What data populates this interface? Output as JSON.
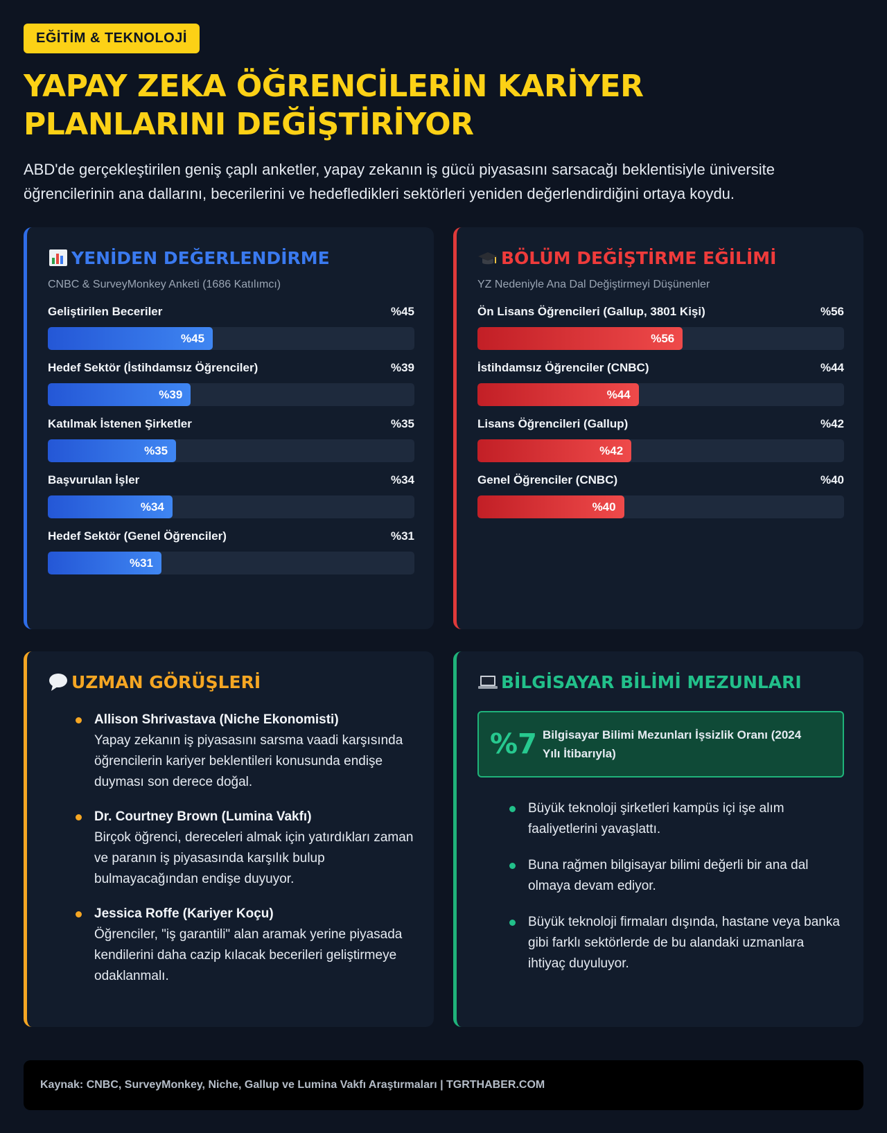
{
  "header": {
    "tag": "EĞİTİM & TEKNOLOJİ",
    "title": "YAPAY ZEKA ÖĞRENCİLERİN KARİYER PLANLARINI DEĞİŞTİRİYOR",
    "lead": "ABD'de gerçekleştirilen geniş çaplı anketler, yapay zekanın iş gücü piyasasını sarsacağı beklentisiyle üniversite öğrencilerinin ana dallarını, becerilerini ve hedefledikleri sektörleri yeniden değerlendirdiğini ortaya koydu."
  },
  "colors": {
    "accent": "#fcd116",
    "blue": "#2f6de8",
    "red": "#e03a3a",
    "orange": "#f5a623",
    "green": "#1fb37a"
  },
  "chart_data": [
    {
      "type": "bar",
      "title": "YENİDEN DEĞERLENDİRME",
      "icon": "bar-chart-icon",
      "subtitle": "CNBC & SurveyMonkey Anketi (1686 Katılımcı)",
      "categories": [
        "Geliştirilen Beceriler",
        "Hedef Sektör (İstihdamsız Öğrenciler)",
        "Katılmak İstenen Şirketler",
        "Başvurulan İşler",
        "Hedef Sektör (Genel Öğrenciler)"
      ],
      "values": [
        45,
        39,
        35,
        34,
        31
      ],
      "labels": [
        "%45",
        "%39",
        "%35",
        "%34",
        "%31"
      ],
      "ylim": [
        0,
        100
      ]
    },
    {
      "type": "bar",
      "title": "BÖLÜM DEĞİŞTİRME EĞİLİMİ",
      "icon": "graduation-cap-icon",
      "subtitle": "YZ Nedeniyle Ana Dal Değiştirmeyi Düşünenler",
      "categories": [
        "Ön Lisans Öğrencileri (Gallup, 3801 Kişi)",
        "İstihdamsız Öğrenciler (CNBC)",
        "Lisans Öğrencileri (Gallup)",
        "Genel Öğrenciler (CNBC)"
      ],
      "values": [
        56,
        44,
        42,
        40
      ],
      "labels": [
        "%56",
        "%44",
        "%42",
        "%40"
      ],
      "ylim": [
        0,
        100
      ]
    }
  ],
  "experts": {
    "title": "UZMAN GÖRÜŞLERİ",
    "icon": "speech-bubble-icon",
    "items": [
      {
        "name": "Allison Shrivastava (Niche Ekonomisti)",
        "text": "Yapay zekanın iş piyasasını sarsma vaadi karşısında öğrencilerin kariyer beklentileri konusunda endişe duyması son derece doğal."
      },
      {
        "name": "Dr. Courtney Brown (Lumina Vakfı)",
        "text": "Birçok öğrenci, dereceleri almak için yatırdıkları zaman ve paranın iş piyasasında karşılık bulup bulmayacağından endişe duyuyor."
      },
      {
        "name": "Jessica Roffe (Kariyer Koçu)",
        "text": "Öğrenciler, \"iş garantili\" alan aramak yerine piyasada kendilerini daha cazip kılacak becerileri geliştirmeye odaklanmalı."
      }
    ]
  },
  "cs": {
    "title": "BİLGİSAYAR BİLİMİ MEZUNLARI",
    "icon": "laptop-icon",
    "stat_value": "%7",
    "stat_label": "Bilgisayar Bilimi Mezunları İşsizlik Oranı (2024 Yılı İtibarıyla)",
    "facts": [
      "Büyük teknoloji şirketleri kampüs içi işe alım faaliyetlerini yavaşlattı.",
      "Buna rağmen bilgisayar bilimi değerli bir ana dal olmaya devam ediyor.",
      "Büyük teknoloji firmaları dışında, hastane veya banka gibi farklı sektörlerde de bu alandaki uzmanlara ihtiyaç duyuluyor."
    ]
  },
  "footer": {
    "text": "Kaynak: CNBC, SurveyMonkey, Niche, Gallup ve Lumina Vakfı Araştırmaları | TGRTHABER.COM"
  }
}
